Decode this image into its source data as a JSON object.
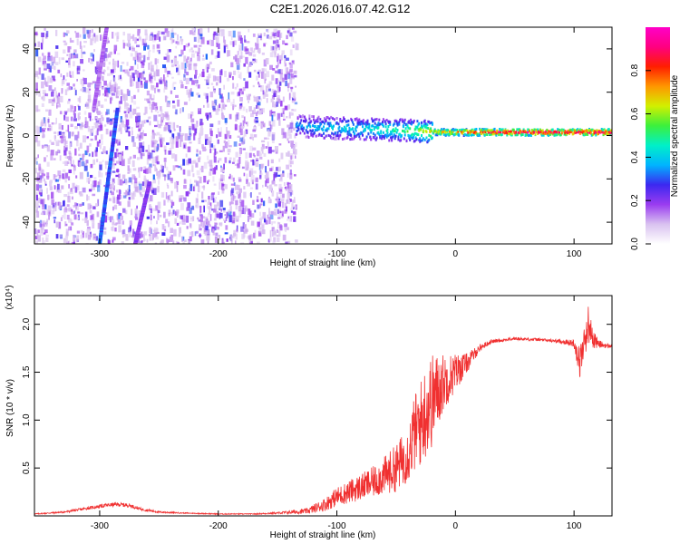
{
  "title": "C2E1.2026.016.07.42.G12",
  "chart_data": [
    {
      "type": "heatmap",
      "xlabel": "Height of straight line (km)",
      "ylabel": "Frequency (Hz)",
      "xlim": [
        -355,
        132
      ],
      "ylim": [
        -50,
        50
      ],
      "xticks": [
        -300,
        -200,
        -100,
        0,
        100
      ],
      "yticks": [
        -40,
        -20,
        0,
        20,
        40
      ],
      "colorbar": {
        "label": "Normalized spectral amplitude",
        "range": [
          0,
          1
        ],
        "ticks": [
          0.0,
          0.2,
          0.4,
          0.6,
          0.8
        ],
        "colors": [
          "#ffffff",
          "#d9c2f0",
          "#9a3cf0",
          "#3c28f0",
          "#00b4ff",
          "#00f0c8",
          "#3cf03c",
          "#d2f000",
          "#ff9600",
          "#ff1e00",
          "#ff0080",
          "#ff00c8"
        ]
      },
      "features": {
        "noise_region_x": [
          -355,
          -135
        ],
        "streaks": [
          {
            "x": [
              -300,
              -285
            ],
            "y": [
              -50,
              12
            ],
            "level": 0.3
          },
          {
            "x": [
              -270,
              -258
            ],
            "y": [
              -50,
              -22
            ],
            "level": 0.2
          },
          {
            "x": [
              -305,
              -294
            ],
            "y": [
              12,
              50
            ],
            "level": 0.15
          }
        ],
        "signal_band": [
          {
            "x": -135,
            "y": 4.5,
            "level": 0.35
          },
          {
            "x": -110,
            "y": 3.5,
            "level": 0.4
          },
          {
            "x": -80,
            "y": 3,
            "level": 0.45
          },
          {
            "x": -50,
            "y": 2.5,
            "level": 0.5
          },
          {
            "x": -30,
            "y": 2,
            "level": 0.6
          },
          {
            "x": -10,
            "y": 1.5,
            "level": 0.75
          },
          {
            "x": 20,
            "y": 1.5,
            "level": 0.9
          },
          {
            "x": 60,
            "y": 1.5,
            "level": 0.95
          },
          {
            "x": 100,
            "y": 1.5,
            "level": 0.95
          },
          {
            "x": 132,
            "y": 1.5,
            "level": 0.95
          }
        ]
      }
    },
    {
      "type": "line",
      "xlabel": "Height of straight line (km)",
      "ylabel": "SNR (10 * v/v)",
      "y_multiplier": "(x10⁴)",
      "xlim": [
        -355,
        132
      ],
      "ylim": [
        0,
        2.3
      ],
      "xticks": [
        -300,
        -200,
        -100,
        0,
        100
      ],
      "yticks": [
        0.5,
        1.0,
        1.5,
        2.0
      ],
      "series": [
        {
          "color": "#f03030",
          "x": [
            -355,
            -330,
            -310,
            -295,
            -285,
            -275,
            -265,
            -250,
            -230,
            -200,
            -170,
            -150,
            -125,
            -110,
            -100,
            -90,
            -80,
            -70,
            -60,
            -50,
            -40,
            -35,
            -30,
            -25,
            -20,
            -15,
            -10,
            -5,
            0,
            10,
            20,
            30,
            50,
            70,
            90,
            100,
            105,
            108,
            112,
            116,
            120,
            125,
            132
          ],
          "y": [
            0.02,
            0.04,
            0.08,
            0.11,
            0.12,
            0.11,
            0.07,
            0.04,
            0.03,
            0.02,
            0.02,
            0.03,
            0.05,
            0.12,
            0.2,
            0.25,
            0.3,
            0.35,
            0.42,
            0.5,
            0.65,
            0.85,
            0.95,
            1.1,
            1.2,
            1.3,
            1.4,
            1.45,
            1.5,
            1.6,
            1.75,
            1.82,
            1.85,
            1.84,
            1.82,
            1.8,
            1.6,
            1.78,
            2.0,
            1.85,
            1.8,
            1.78,
            1.77
          ],
          "amplitude": [
            0.005,
            0.01,
            0.015,
            0.02,
            0.02,
            0.02,
            0.015,
            0.01,
            0.005,
            0.005,
            0.005,
            0.01,
            0.03,
            0.07,
            0.1,
            0.12,
            0.14,
            0.16,
            0.2,
            0.25,
            0.3,
            0.4,
            0.45,
            0.5,
            0.5,
            0.4,
            0.3,
            0.25,
            0.2,
            0.1,
            0.04,
            0.02,
            0.015,
            0.015,
            0.02,
            0.04,
            0.2,
            0.15,
            0.2,
            0.1,
            0.05,
            0.03,
            0.02
          ]
        }
      ]
    }
  ]
}
